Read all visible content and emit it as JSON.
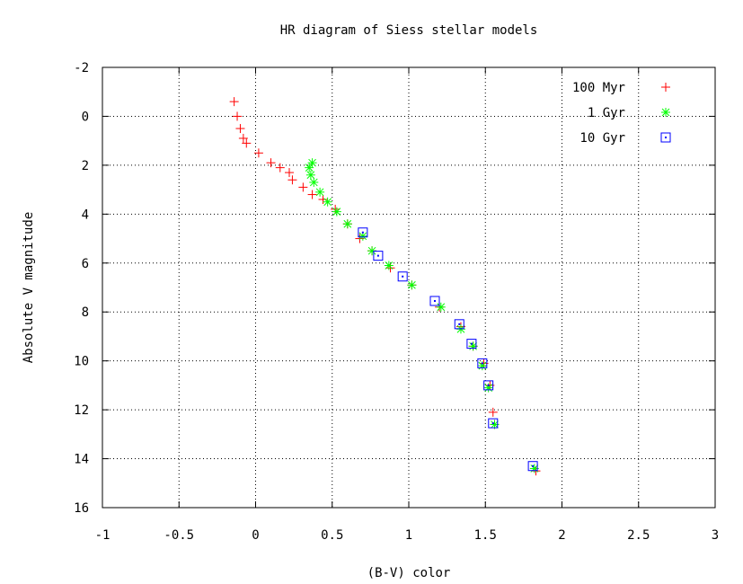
{
  "chart_data": {
    "type": "scatter",
    "title": "HR diagram of Siess stellar models",
    "xlabel": "(B-V) color",
    "ylabel": "Absolute V magnitude",
    "xlim": [
      -1,
      3
    ],
    "ylim": [
      -2,
      16
    ],
    "y_inverted": true,
    "xticks": [
      "-1",
      "-0.5",
      "0",
      "0.5",
      "1",
      "1.5",
      "2",
      "2.5",
      "3"
    ],
    "yticks": [
      "-2",
      "0",
      "2",
      "4",
      "6",
      "8",
      "10",
      "12",
      "14",
      "16"
    ],
    "grid": true,
    "legend_position": "top-right",
    "series": [
      {
        "name": "100 Myr",
        "marker": "plus",
        "color": "#ff0000",
        "points": [
          [
            -0.14,
            -0.6
          ],
          [
            -0.12,
            0.0
          ],
          [
            -0.1,
            0.5
          ],
          [
            -0.08,
            0.9
          ],
          [
            -0.06,
            1.1
          ],
          [
            0.02,
            1.5
          ],
          [
            0.1,
            1.9
          ],
          [
            0.16,
            2.1
          ],
          [
            0.22,
            2.3
          ],
          [
            0.24,
            2.6
          ],
          [
            0.31,
            2.9
          ],
          [
            0.37,
            3.2
          ],
          [
            0.44,
            3.4
          ],
          [
            0.52,
            3.8
          ],
          [
            0.6,
            4.4
          ],
          [
            0.68,
            5.0
          ],
          [
            0.76,
            5.5
          ],
          [
            0.88,
            6.2
          ],
          [
            1.02,
            6.9
          ],
          [
            1.2,
            7.8
          ],
          [
            1.34,
            8.6
          ],
          [
            1.42,
            9.4
          ],
          [
            1.49,
            10.1
          ],
          [
            1.53,
            11.0
          ],
          [
            1.55,
            12.1
          ],
          [
            1.56,
            12.6
          ],
          [
            1.83,
            14.5
          ]
        ]
      },
      {
        "name": "1 Gyr",
        "marker": "star",
        "color": "#00ff00",
        "points": [
          [
            0.37,
            1.9
          ],
          [
            0.35,
            2.1
          ],
          [
            0.36,
            2.4
          ],
          [
            0.38,
            2.7
          ],
          [
            0.42,
            3.1
          ],
          [
            0.47,
            3.5
          ],
          [
            0.53,
            3.9
          ],
          [
            0.6,
            4.4
          ],
          [
            0.7,
            4.9
          ],
          [
            0.76,
            5.5
          ],
          [
            0.87,
            6.1
          ],
          [
            1.02,
            6.9
          ],
          [
            1.21,
            7.8
          ],
          [
            1.34,
            8.7
          ],
          [
            1.42,
            9.4
          ],
          [
            1.48,
            10.2
          ],
          [
            1.52,
            11.1
          ],
          [
            1.56,
            12.6
          ],
          [
            1.82,
            14.4
          ]
        ]
      },
      {
        "name": "10 Gyr",
        "marker": "box",
        "color": "#0000ff",
        "points": [
          [
            0.7,
            4.75
          ],
          [
            0.8,
            5.7
          ],
          [
            0.96,
            6.55
          ],
          [
            1.17,
            7.55
          ],
          [
            1.33,
            8.5
          ],
          [
            1.41,
            9.3
          ],
          [
            1.48,
            10.1
          ],
          [
            1.52,
            11.0
          ],
          [
            1.55,
            12.55
          ],
          [
            1.81,
            14.3
          ]
        ]
      }
    ]
  }
}
